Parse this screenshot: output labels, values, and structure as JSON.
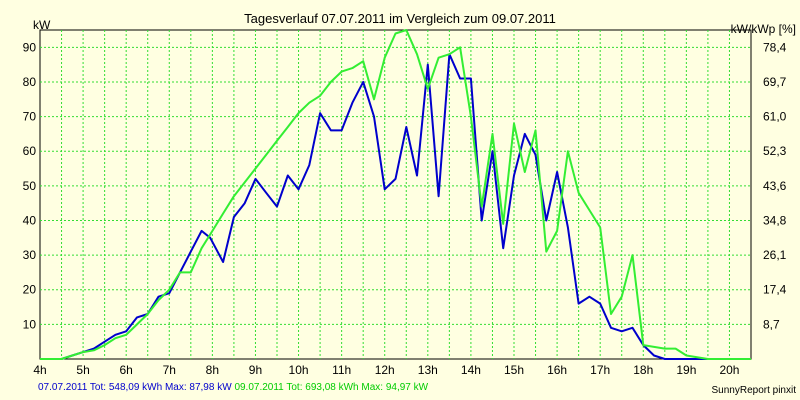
{
  "chart_data": {
    "type": "line",
    "title": "Tagesverlauf 07.07.2011 im Vergleich zum 09.07.2011",
    "ylabel": "kW",
    "ylabel_right": "kW/kWp [%]",
    "xlim": [
      4,
      20.5
    ],
    "ylim": [
      0,
      95
    ],
    "x_ticks": [
      "4h",
      "5h",
      "6h",
      "7h",
      "8h",
      "9h",
      "10h",
      "11h",
      "12h",
      "13h",
      "14h",
      "15h",
      "16h",
      "17h",
      "18h",
      "19h",
      "20h"
    ],
    "y_ticks": [
      10,
      20,
      30,
      40,
      50,
      60,
      70,
      80,
      90
    ],
    "y2_ticks": [
      "8,7",
      "17,4",
      "26,1",
      "34,8",
      "43,6",
      "52,3",
      "61,0",
      "69,7",
      "78,4"
    ],
    "grid": true,
    "series": [
      {
        "name": "07.07.2011",
        "color": "#0000cc",
        "x": [
          4,
          4.5,
          4.75,
          5,
          5.25,
          5.5,
          5.75,
          6,
          6.25,
          6.5,
          6.75,
          7,
          7.25,
          7.5,
          7.75,
          7.95,
          8.25,
          8.5,
          8.75,
          9,
          9.25,
          9.5,
          9.75,
          10,
          10.25,
          10.5,
          10.75,
          11,
          11.25,
          11.5,
          11.75,
          12,
          12.25,
          12.5,
          12.75,
          13,
          13.25,
          13.5,
          13.75,
          14,
          14.25,
          14.5,
          14.75,
          15,
          15.25,
          15.5,
          15.75,
          16,
          16.25,
          16.5,
          16.75,
          17,
          17.25,
          17.5,
          17.75,
          18,
          18.25,
          18.5,
          18.75,
          19,
          19.5,
          20,
          20.5
        ],
        "y": [
          0,
          0,
          1,
          2,
          3,
          5,
          7,
          8,
          12,
          13,
          18,
          19,
          25,
          31,
          37,
          35,
          28,
          41,
          45,
          52,
          48,
          44,
          53,
          49,
          56,
          71,
          66,
          66,
          74,
          80,
          70,
          49,
          52,
          67,
          53,
          85,
          47,
          88,
          81,
          81,
          40,
          60,
          32,
          53,
          65,
          59,
          40,
          54,
          38,
          16,
          18,
          16,
          9,
          8,
          9,
          4,
          1,
          0,
          0,
          0,
          0,
          0,
          0
        ]
      },
      {
        "name": "09.07.2011",
        "color": "#33ee33",
        "x": [
          4,
          4.5,
          4.75,
          5,
          5.25,
          5.5,
          5.75,
          6,
          6.25,
          6.5,
          6.75,
          7,
          7.25,
          7.5,
          7.75,
          8,
          8.25,
          8.5,
          8.75,
          9,
          9.25,
          9.5,
          9.75,
          10,
          10.25,
          10.5,
          10.75,
          11,
          11.25,
          11.5,
          11.75,
          12,
          12.25,
          12.5,
          12.75,
          13,
          13.25,
          13.5,
          13.75,
          14,
          14.25,
          14.5,
          14.75,
          15,
          15.25,
          15.5,
          15.75,
          16,
          16.25,
          16.5,
          16.75,
          17,
          17.25,
          17.5,
          17.75,
          18,
          18.25,
          18.5,
          18.75,
          19,
          19.5,
          20,
          20.5
        ],
        "y": [
          0,
          0,
          1,
          2,
          2.5,
          4,
          6,
          7,
          10,
          13,
          17,
          20,
          25,
          25,
          32,
          37,
          42,
          47,
          51,
          55,
          59,
          63,
          67,
          71,
          74,
          76,
          80,
          83,
          84,
          86,
          75,
          87,
          94,
          95,
          88,
          78,
          87,
          88,
          90,
          70,
          44,
          65,
          39,
          68,
          54,
          66,
          31,
          37,
          60,
          48,
          43,
          38,
          13,
          18,
          30,
          4,
          3.5,
          3,
          3,
          1,
          0,
          0,
          0
        ]
      }
    ]
  },
  "footer": {
    "series1_date": "07.07.2011",
    "series1_stats": "Tot: 548,09 kWh Max: 87,98 kW",
    "series2_date": "09.07.2011",
    "series2_stats": "Tot: 693,08 kWh Max: 94,97 kW"
  },
  "credit": "SunnyReport pinxit"
}
